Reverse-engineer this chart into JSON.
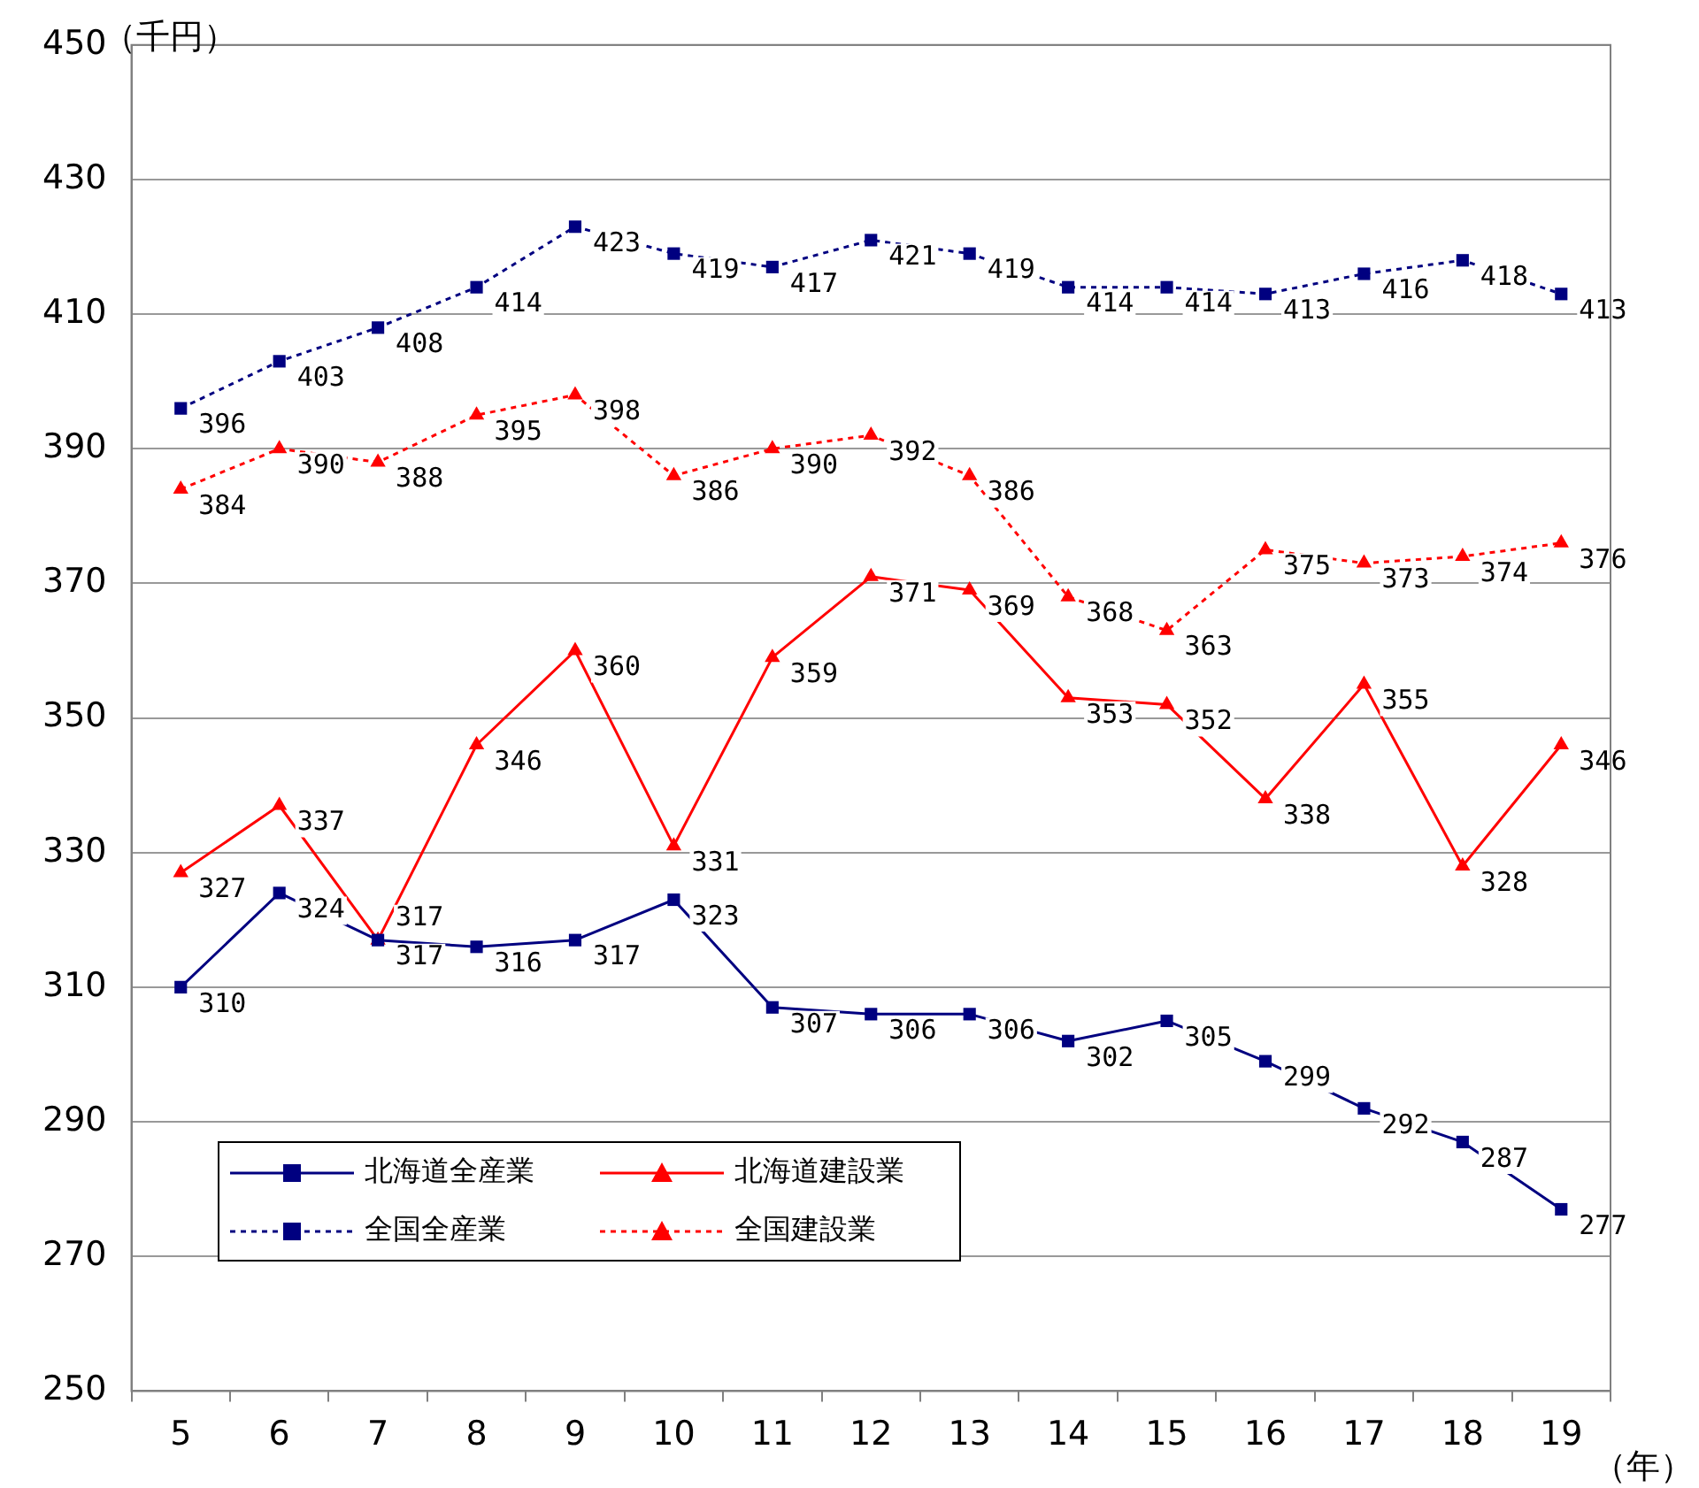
{
  "chart_data": {
    "type": "line",
    "ylabel": "（千円）",
    "xlabel": "（年）",
    "categories": [
      "5",
      "6",
      "7",
      "8",
      "9",
      "10",
      "11",
      "12",
      "13",
      "14",
      "15",
      "16",
      "17",
      "18",
      "19"
    ],
    "ylim": [
      250,
      450
    ],
    "yticks": [
      250,
      270,
      290,
      310,
      330,
      350,
      370,
      390,
      410,
      430,
      450
    ],
    "grid": "y",
    "legend": "bottom left",
    "data_labels": true,
    "series": [
      {
        "name": "北海道全産業",
        "color": "#000080",
        "marker": "square",
        "line_style": "solid",
        "values": [
          310,
          324,
          317,
          316,
          317,
          323,
          307,
          306,
          306,
          302,
          305,
          299,
          292,
          287,
          277
        ]
      },
      {
        "name": "北海道建設業",
        "color": "#ff0000",
        "marker": "triangle",
        "line_style": "solid",
        "values": [
          327,
          337,
          317,
          346,
          360,
          331,
          359,
          371,
          369,
          353,
          352,
          338,
          355,
          328,
          346
        ]
      },
      {
        "name": "全国全産業",
        "color": "#000080",
        "marker": "square",
        "line_style": "dotted",
        "values": [
          396,
          403,
          408,
          414,
          423,
          419,
          417,
          421,
          419,
          414,
          414,
          413,
          416,
          418,
          413
        ]
      },
      {
        "name": "全国建設業",
        "color": "#ff0000",
        "marker": "triangle",
        "line_style": "dotted",
        "values": [
          384,
          390,
          388,
          395,
          398,
          386,
          390,
          392,
          386,
          368,
          363,
          375,
          373,
          374,
          376
        ]
      }
    ]
  }
}
